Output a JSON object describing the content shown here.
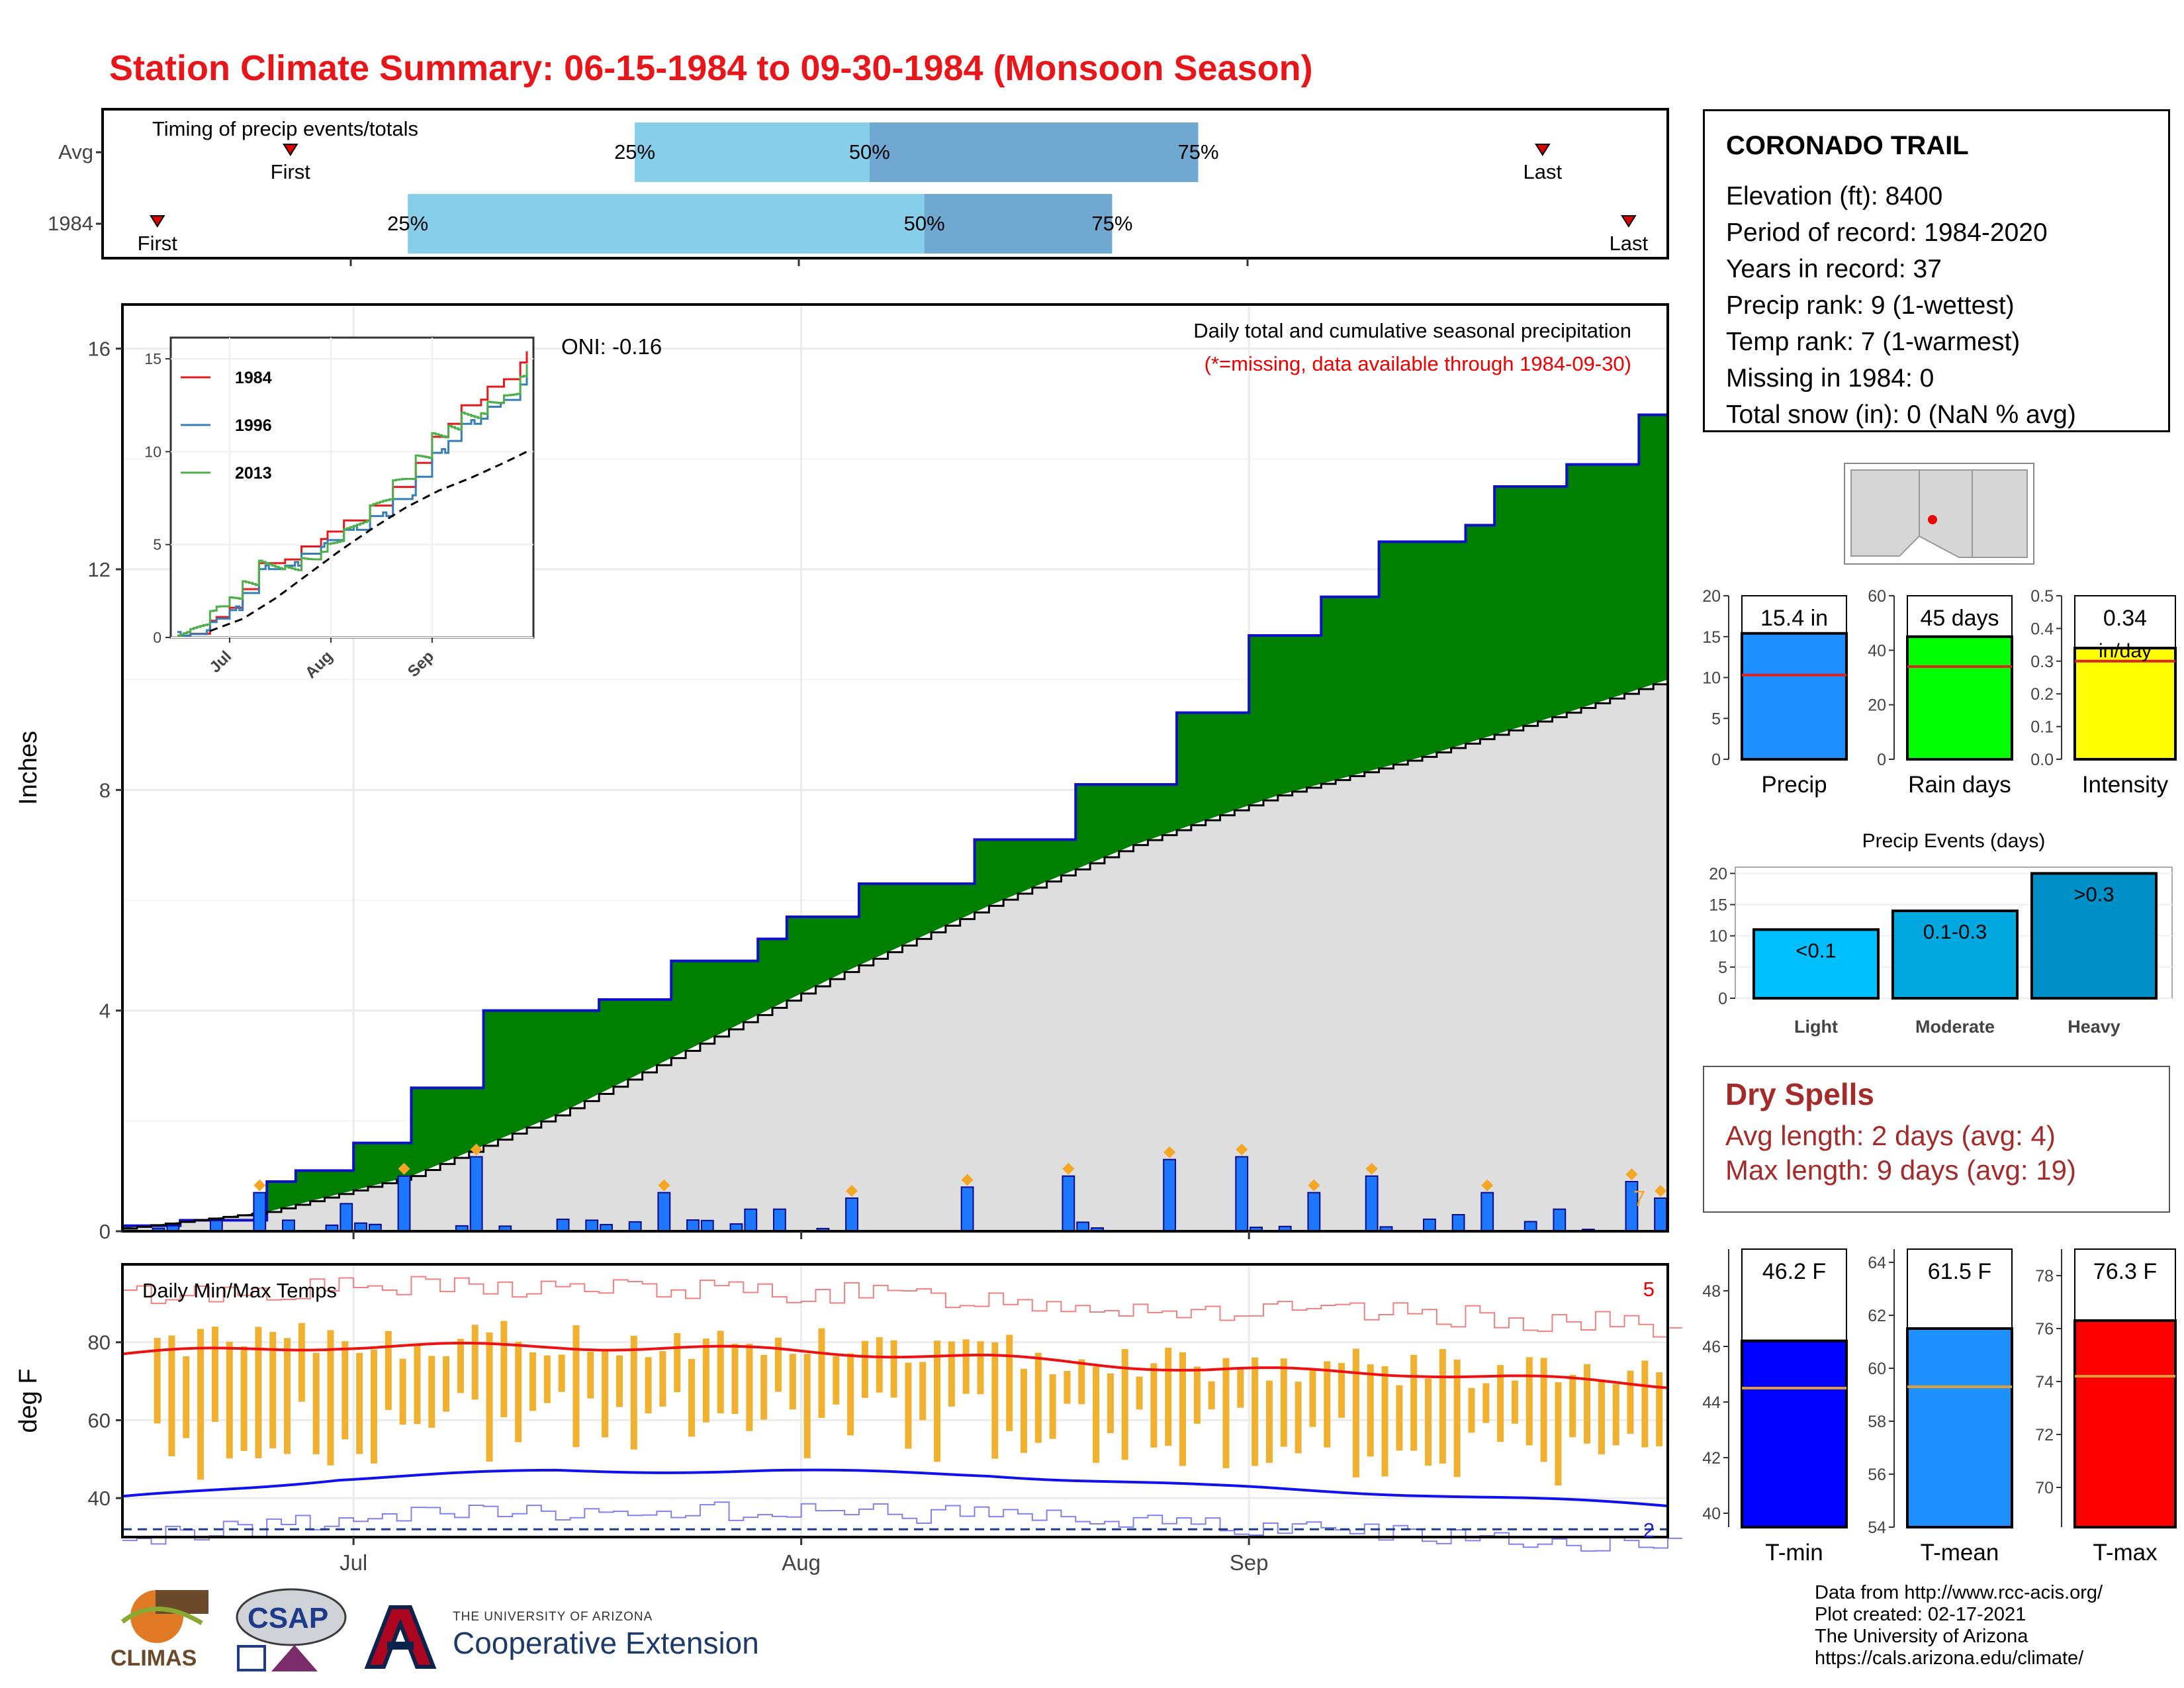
{
  "title": "Station Climate Summary: 06-15-1984 to 09-30-1984 (Monsoon Season)",
  "timing": {
    "title": "Timing of precip events/totals",
    "rows": [
      {
        "label": "Avg",
        "first": "First",
        "last": "Last",
        "first_x": 0.12,
        "last_x": 0.92,
        "p25": 0.34,
        "p50": 0.49,
        "p75": 0.7
      },
      {
        "label": "1984",
        "first": "First",
        "last": "Last",
        "first_x": 0.035,
        "last_x": 0.975,
        "p25": 0.195,
        "p50": 0.525,
        "p75": 0.645
      }
    ],
    "pct_labels": [
      "25%",
      "50%",
      "75%"
    ]
  },
  "main": {
    "ylabel": "Inches",
    "ytick_labels": [
      "0",
      "4",
      "8",
      "12",
      "16"
    ],
    "legend_title": "Daily total and cumulative seasonal precipitation",
    "legend_sub": "(*=missing, data available through 1984-09-30)",
    "oni": "ONI: -0.16",
    "count_label": "7",
    "colors": {
      "fill": "#008000",
      "line": "#1010c8",
      "avg": "#dedede",
      "bar": "#1e78ff",
      "diamond": "#f5a623"
    }
  },
  "inset": {
    "legend": [
      "1984",
      "1996",
      "2013"
    ],
    "colors": [
      "#e41a1c",
      "#377eb8",
      "#4daf4a"
    ],
    "ytick_labels": [
      "0",
      "5",
      "10",
      "15"
    ],
    "xtick_labels": [
      "Jul",
      "Aug",
      "Sep"
    ]
  },
  "temps": {
    "title": "Daily Min/Max Temps",
    "ylabel": "deg F",
    "ytick_labels": [
      "40",
      "60",
      "80"
    ],
    "xtick_labels": [
      "Jul",
      "Aug",
      "Sep"
    ],
    "max_count": "5",
    "min_count": "2"
  },
  "station": {
    "name": "CORONADO TRAIL",
    "lines": [
      "Elevation (ft): 8400",
      "Period of record: 1984-2020",
      "Years in record: 37",
      "Precip rank: 9 (1-wettest)",
      "Temp rank: 7 (1-warmest)",
      "Missing in 1984: 0",
      "Total snow (in): 0 (NaN % avg)"
    ]
  },
  "small_bars": [
    {
      "name": "Precip",
      "label": "15.4 in",
      "value": 15.4,
      "avg": 10.3,
      "max": 20,
      "ticks": [
        "0",
        "5",
        "10",
        "15",
        "20"
      ],
      "color": "#1e90ff"
    },
    {
      "name": "Rain days",
      "label": "45 days",
      "value": 45,
      "avg": 34,
      "max": 60,
      "ticks": [
        "0",
        "20",
        "40",
        "60"
      ],
      "color": "#00ff00"
    },
    {
      "name": "Intensity",
      "label": "0.34",
      "label2": "in/day",
      "value": 0.34,
      "avg": 0.3,
      "max": 0.5,
      "ticks": [
        "0.0",
        "0.1",
        "0.2",
        "0.3",
        "0.4",
        "0.5"
      ],
      "color": "#ffff00"
    }
  ],
  "events": {
    "title": "Precip Events (days)",
    "categories": [
      "Light",
      "Moderate",
      "Heavy"
    ],
    "labels": [
      "<0.1",
      "0.1-0.3",
      ">0.3"
    ],
    "values": [
      11,
      14,
      20
    ],
    "ticks": [
      "0",
      "5",
      "10",
      "15",
      "20"
    ],
    "colors": [
      "#00bfff",
      "#00a8e0",
      "#0090c8"
    ]
  },
  "dry": {
    "title": "Dry Spells",
    "avg": "Avg length: 2 days (avg: 4)",
    "max": "Max length: 9 days (avg: 19)"
  },
  "temp_bars": [
    {
      "name": "T-min",
      "label": "46.2 F",
      "value": 46.2,
      "avg": 44.5,
      "min": 39.5,
      "max": 49.5,
      "ticks": [
        "40",
        "42",
        "44",
        "46",
        "48"
      ],
      "color": "#0000ff"
    },
    {
      "name": "T-mean",
      "label": "61.5 F",
      "value": 61.5,
      "avg": 59.3,
      "min": 54,
      "max": 64.5,
      "ticks": [
        "54",
        "56",
        "58",
        "60",
        "62",
        "64"
      ],
      "color": "#1e90ff"
    },
    {
      "name": "T-max",
      "label": "76.3 F",
      "value": 76.3,
      "avg": 74.2,
      "min": 68.5,
      "max": 79,
      "ticks": [
        "70",
        "72",
        "74",
        "76",
        "78"
      ],
      "color": "#ff0000"
    }
  ],
  "credits": [
    "Data from http://www.rcc-acis.org/",
    "Plot created: 02-17-2021",
    "The University of Arizona",
    "https://cals.arizona.edu/climate/"
  ],
  "logos": {
    "climas": "CLIMAS",
    "csap": "CSAP",
    "ua_line1": "THE UNIVERSITY OF ARIZONA",
    "ua_line2": "Cooperative Extension"
  },
  "chart_data": [
    {
      "type": "area",
      "title": "Daily total and cumulative seasonal precipitation",
      "ylabel": "Inches",
      "ylim": [
        0,
        16.8
      ],
      "xlim_days": [
        0,
        107
      ],
      "series": [
        {
          "name": "1984",
          "x_day": [
            0,
            4,
            10,
            12,
            16,
            20,
            25,
            33,
            38,
            44,
            46,
            51,
            59,
            66,
            73,
            78,
            83,
            87,
            93,
            95,
            100,
            105,
            107
          ],
          "values": [
            0.1,
            0.2,
            0.9,
            1.1,
            1.6,
            2.6,
            4.0,
            4.2,
            4.9,
            5.3,
            5.7,
            6.3,
            7.1,
            8.1,
            9.4,
            10.8,
            11.5,
            12.5,
            12.8,
            13.5,
            13.9,
            14.8,
            15.4
          ]
        },
        {
          "name": "Average",
          "x_day": [
            0,
            10,
            20,
            30,
            40,
            50,
            60,
            70,
            80,
            90,
            100,
            107
          ],
          "values": [
            0.05,
            0.35,
            1.0,
            2.1,
            3.4,
            4.7,
            5.9,
            7.0,
            7.9,
            8.6,
            9.4,
            10.0
          ]
        }
      ]
    },
    {
      "type": "line",
      "title": "Daily Min/Max Temps",
      "ylabel": "deg F",
      "ylim": [
        30,
        100
      ],
      "series": [
        {
          "name": "avg max",
          "x_day": [
            0,
            15,
            30,
            45,
            60,
            75,
            90,
            107
          ],
          "values": [
            77,
            79,
            79,
            78,
            76,
            73,
            72,
            69
          ]
        },
        {
          "name": "avg min",
          "x_day": [
            0,
            15,
            30,
            45,
            60,
            75,
            90,
            107
          ],
          "values": [
            40,
            45,
            47,
            47,
            46,
            43,
            41,
            38
          ]
        }
      ]
    }
  ]
}
